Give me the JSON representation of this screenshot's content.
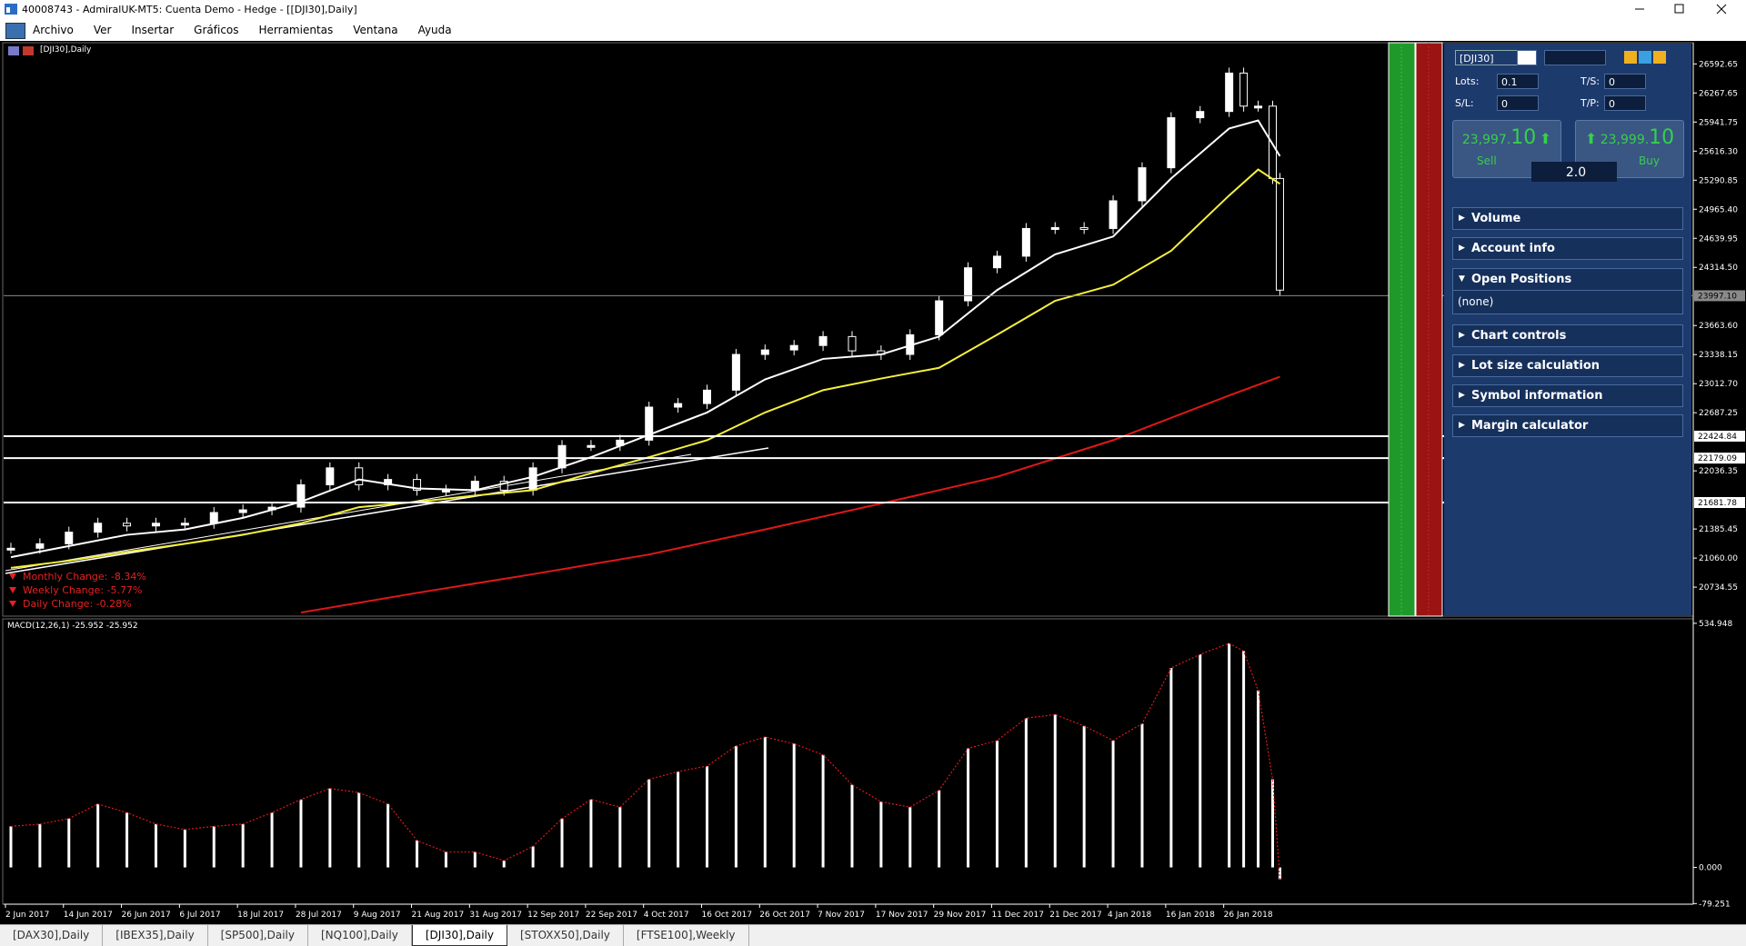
{
  "window": {
    "title": "40008743 - AdmiralUK-MT5: Cuenta Demo - Hedge - [[DJI30],Daily]",
    "menu": [
      "Archivo",
      "Ver",
      "Insertar",
      "Gráficos",
      "Herramientas",
      "Ventana",
      "Ayuda"
    ]
  },
  "chart_data": [
    {
      "type": "candlestick",
      "title": "[DJI30],Daily",
      "xlim": [
        -1,
        232
      ],
      "ylim": [
        20410,
        26830
      ],
      "yticks": [
        26592.65,
        26267.65,
        25941.75,
        {
          "value": 25616.3,
          "label": "25616.30"
        },
        25290.85,
        {
          "value": 24965.4,
          "label": "24965.40"
        },
        24639.95,
        {
          "value": 24314.5,
          "label": "24314.50"
        },
        {
          "value": 23663.6,
          "label": "23663.60"
        },
        23338.15,
        {
          "value": 23012.7,
          "label": "23012.70"
        },
        22687.25,
        22036.35,
        21385.45,
        {
          "value": 21060,
          "label": "21060.00"
        },
        20734.55
      ],
      "current_price": {
        "value": 23997.1,
        "label": "23997.10"
      },
      "levels": [
        22424.84,
        22179.09,
        21681.78
      ],
      "annotations": [
        "Monthly Change: -8.34%",
        "Weekly Change: -5.77%",
        "Daily Change: -0.28%"
      ],
      "annotation_color": "#e52222",
      "series": [
        {
          "kind": "candle",
          "color": "#ffffff",
          "x": [
            0,
            4,
            8,
            12,
            16,
            20,
            24,
            28,
            32,
            36,
            40,
            44,
            48,
            52,
            56,
            60,
            64,
            68,
            72,
            76,
            80,
            84,
            88,
            92,
            96,
            100,
            104,
            108,
            112,
            116,
            120,
            124,
            128,
            132,
            136,
            140,
            144,
            148,
            152,
            156,
            160,
            164,
            168,
            170,
            172,
            174,
            175
          ],
          "values": [
            21170,
            21220,
            21350,
            21450,
            21420,
            21450,
            21450,
            21570,
            21600,
            21630,
            21880,
            22070,
            21880,
            21940,
            21820,
            21820,
            21920,
            21820,
            22070,
            22320,
            22320,
            22380,
            22750,
            22790,
            22940,
            23340,
            23390,
            23440,
            23540,
            23380,
            23340,
            23560,
            23940,
            24310,
            24440,
            24750,
            24760,
            24750,
            25060,
            25430,
            25990,
            26060,
            26490,
            26120,
            26120,
            25310,
            24060
          ]
        },
        {
          "kind": "line",
          "color": "#ffffff",
          "x": [
            0,
            8,
            16,
            24,
            32,
            40,
            48,
            56,
            64,
            72,
            80,
            88,
            96,
            104,
            112,
            120,
            128,
            136,
            144,
            152,
            160,
            168,
            172,
            175
          ],
          "values": [
            21070,
            21195,
            21320,
            21380,
            21510,
            21690,
            21940,
            21840,
            21820,
            21970,
            22190,
            22440,
            22690,
            23060,
            23290,
            23340,
            23540,
            24060,
            24460,
            24660,
            25310,
            25870,
            25960,
            25560
          ]
        },
        {
          "kind": "line",
          "color": "#f5f03c",
          "x": [
            0,
            8,
            16,
            24,
            32,
            40,
            48,
            56,
            64,
            72,
            80,
            88,
            96,
            104,
            112,
            120,
            128,
            136,
            144,
            152,
            160,
            168,
            172,
            175
          ],
          "values": [
            20950,
            21030,
            21130,
            21220,
            21320,
            21450,
            21630,
            21690,
            21760,
            21820,
            22010,
            22190,
            22380,
            22690,
            22940,
            23070,
            23190,
            23560,
            23940,
            24120,
            24500,
            25120,
            25410,
            25250
          ]
        },
        {
          "kind": "line",
          "color": "#e01818",
          "x": [
            40,
            56,
            72,
            88,
            104,
            120,
            136,
            152,
            168,
            175
          ],
          "values": [
            20450,
            20670,
            20880,
            21100,
            21380,
            21670,
            21970,
            22380,
            22880,
            23090
          ]
        }
      ]
    },
    {
      "type": "bar",
      "title": "MACD(12,26,1) -25.952 -25.952",
      "xlim": [
        -1,
        232
      ],
      "ylim": [
        -80.6,
        544.7
      ],
      "yticks": [
        534.948,
        {
          "value": 0,
          "label": "0.000"
        },
        -79.251
      ],
      "xticks": [
        {
          "value": 0,
          "label": "2 Jun 2017"
        },
        {
          "value": 8,
          "label": "14 Jun 2017"
        },
        {
          "value": 16,
          "label": "26 Jun 2017"
        },
        {
          "value": 24,
          "label": "6 Jul 2017"
        },
        {
          "value": 32,
          "label": "18 Jul 2017"
        },
        {
          "value": 40,
          "label": "28 Jul 2017"
        },
        {
          "value": 48,
          "label": "9 Aug 2017"
        },
        {
          "value": 56,
          "label": "21 Aug 2017"
        },
        {
          "value": 64,
          "label": "31 Aug 2017"
        },
        {
          "value": 72,
          "label": "12 Sep 2017"
        },
        {
          "value": 80,
          "label": "22 Sep 2017"
        },
        {
          "value": 88,
          "label": "4 Oct 2017"
        },
        {
          "value": 96,
          "label": "16 Oct 2017"
        },
        {
          "value": 104,
          "label": "26 Oct 2017"
        },
        {
          "value": 112,
          "label": "7 Nov 2017"
        },
        {
          "value": 120,
          "label": "17 Nov 2017"
        },
        {
          "value": 128,
          "label": "29 Nov 2017"
        },
        {
          "value": 136,
          "label": "11 Dec 2017"
        },
        {
          "value": 144,
          "label": "21 Dec 2017"
        },
        {
          "value": 152,
          "label": "4 Jan 2018"
        },
        {
          "value": 160,
          "label": "16 Jan 2018"
        },
        {
          "value": 168,
          "label": "26 Jan 2018"
        }
      ],
      "signal_color": "#e01818",
      "series": [
        {
          "kind": "bar",
          "color": "#ffffff",
          "x": [
            0,
            4,
            8,
            12,
            16,
            20,
            24,
            28,
            32,
            36,
            40,
            44,
            48,
            52,
            56,
            60,
            64,
            68,
            72,
            76,
            80,
            84,
            88,
            92,
            96,
            100,
            104,
            108,
            112,
            116,
            120,
            124,
            128,
            132,
            136,
            140,
            144,
            148,
            152,
            156,
            160,
            164,
            168,
            170,
            172,
            174,
            175
          ],
          "values": [
            90,
            95,
            107,
            139,
            120,
            95,
            83,
            90,
            95,
            120,
            149,
            173,
            164,
            139,
            59,
            34,
            34,
            15,
            46,
            107,
            149,
            132,
            193,
            210,
            222,
            266,
            286,
            271,
            247,
            181,
            144,
            132,
            169,
            261,
            278,
            327,
            335,
            310,
            278,
            315,
            437,
            467,
            491,
            474,
            388,
            193,
            -25.952
          ]
        }
      ]
    }
  ],
  "trade_panel": {
    "symbol": "[DJI30]",
    "lots_label": "Lots:",
    "lots": "0.1",
    "ts_label": "T/S:",
    "ts": "0",
    "sl_label": "S/L:",
    "sl": "0",
    "tp_label": "T/P:",
    "tp": "0",
    "sell_price_main": "23,997.",
    "sell_price_pips": "10",
    "sell_label": "Sell",
    "volume": "2.0",
    "buy_price_main": "23,999.",
    "buy_price_pips": "10",
    "buy_label": "Buy",
    "sections": [
      {
        "title": "Volume"
      },
      {
        "title": "Account info"
      },
      {
        "title": "Open Positions",
        "content": "(none)"
      },
      {
        "title": "Chart controls"
      },
      {
        "title": "Lot size calculation"
      },
      {
        "title": "Symbol information"
      },
      {
        "title": "Margin calculator"
      }
    ]
  },
  "tabs": [
    "[DAX30],Daily",
    "[IBEX35],Daily",
    "[SP500],Daily",
    "[NQ100],Daily",
    "[DJI30],Daily",
    "[STOXX50],Daily",
    "[FTSE100],Weekly"
  ],
  "active_tab": 4
}
